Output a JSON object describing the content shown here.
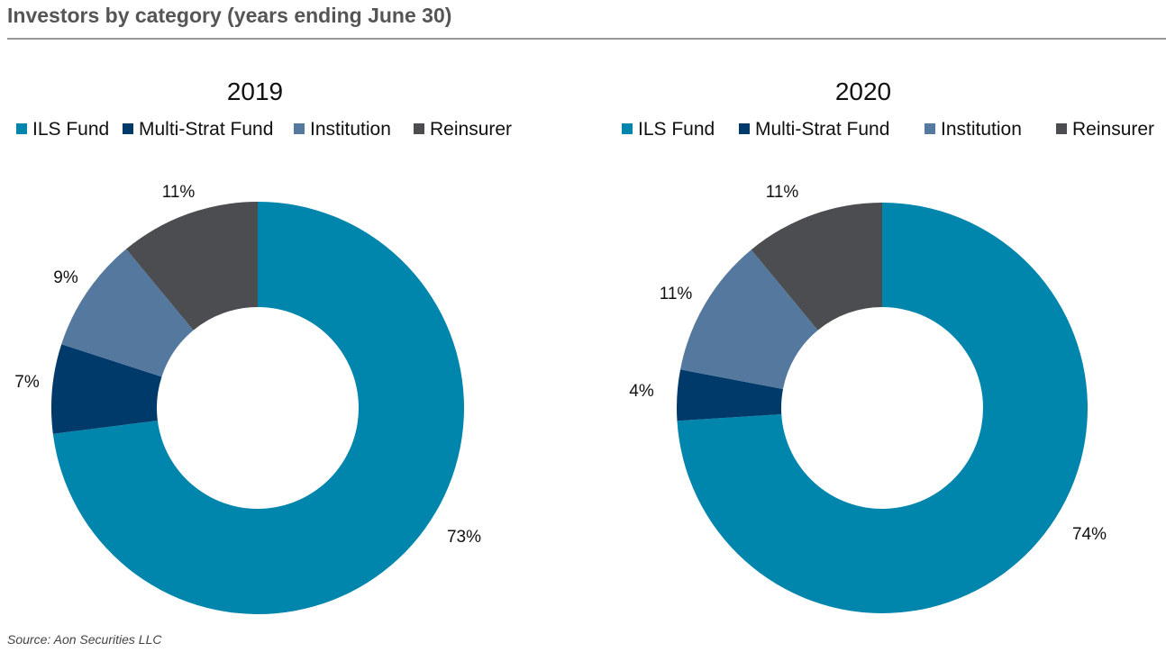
{
  "title": "Investors by category (years ending June 30)",
  "source": "Source: Aon Securities LLC",
  "chart_data": [
    {
      "type": "pie",
      "donut": true,
      "title": "2019",
      "categories": [
        "ILS Fund",
        "Multi-Strat Fund",
        "Institution",
        "Reinsurer"
      ],
      "values": [
        73,
        7,
        9,
        11
      ],
      "labels": [
        "73%",
        "7%",
        "9%",
        "11%"
      ],
      "colors": [
        "#0085ad",
        "#003a6b",
        "#55799e",
        "#4c4d51"
      ],
      "legend": "top"
    },
    {
      "type": "pie",
      "donut": true,
      "title": "2020",
      "categories": [
        "ILS Fund",
        "Multi-Strat Fund",
        "Institution",
        "Reinsurer"
      ],
      "values": [
        74,
        4,
        11,
        11
      ],
      "labels": [
        "74%",
        "4%",
        "11%",
        "11%"
      ],
      "colors": [
        "#0085ad",
        "#003a6b",
        "#55799e",
        "#4c4d51"
      ],
      "legend": "top"
    }
  ]
}
